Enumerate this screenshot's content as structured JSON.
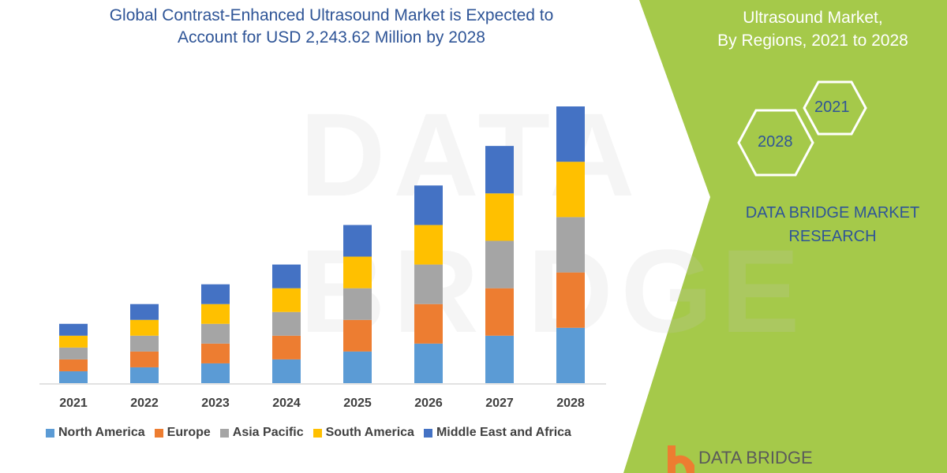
{
  "chart_data": {
    "type": "bar",
    "stacked": true,
    "title": "Global Contrast-Enhanced Ultrasound Market is Expected to Account for USD 2,243.62 Million by 2028",
    "categories": [
      "2021",
      "2022",
      "2023",
      "2024",
      "2025",
      "2026",
      "2027",
      "2028"
    ],
    "series": [
      {
        "name": "North America",
        "color": "#5b9bd5",
        "values": [
          15,
          20,
          25,
          30,
          40,
          50,
          60,
          70
        ]
      },
      {
        "name": "Europe",
        "color": "#ed7d31",
        "values": [
          15,
          20,
          25,
          30,
          40,
          50,
          60,
          70
        ]
      },
      {
        "name": "Asia Pacific",
        "color": "#a5a5a5",
        "values": [
          15,
          20,
          25,
          30,
          40,
          50,
          60,
          70
        ]
      },
      {
        "name": "South America",
        "color": "#ffc000",
        "values": [
          15,
          20,
          25,
          30,
          40,
          50,
          60,
          70
        ]
      },
      {
        "name": "Middle East and Africa",
        "color": "#4472c4",
        "values": [
          15,
          20,
          25,
          30,
          40,
          50,
          60,
          70
        ]
      }
    ],
    "values_note_relative": true,
    "ylim": [
      0,
      350
    ],
    "grid": false,
    "legend": "bottom"
  },
  "title_line1": "Global Contrast-Enhanced Ultrasound Market is Expected to",
  "title_line2": "Account for USD 2,243.62 Million by 2028",
  "side": {
    "title_line1": "Ultrasound Market,",
    "title_line2": "By Regions, 2021 to 2028",
    "hex_a": "2021",
    "hex_b": "2028",
    "brand_line1": "DATA BRIDGE MARKET",
    "brand_line2": "RESEARCH",
    "logo_text": "DATA BRIDGE",
    "green": "#a5c94a"
  }
}
